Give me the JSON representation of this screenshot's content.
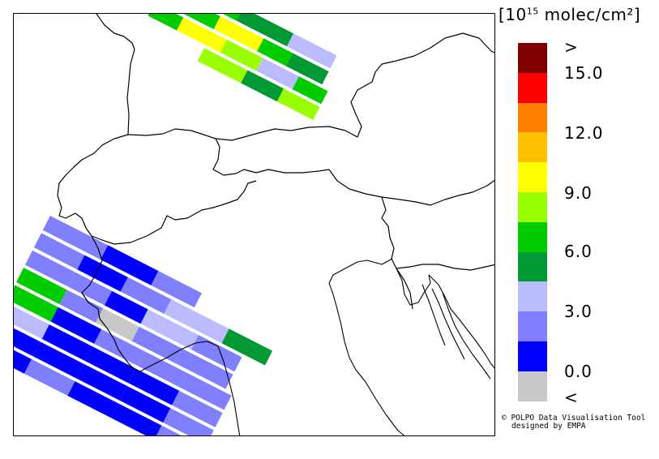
{
  "legend": {
    "unit_prefix": "[10",
    "unit_exp": "15",
    "unit_suffix": " molec/cm²]",
    "colors": [
      "#800000",
      "#ff0000",
      "#ff8000",
      "#ffc000",
      "#ffff00",
      "#99ff00",
      "#00cc00",
      "#009933",
      "#bbbbff",
      "#8080ff",
      "#0000ff",
      "#c8c8c8"
    ],
    "tick_labels": [
      ">",
      "15.0",
      "12.0",
      "9.0",
      "6.0",
      "3.0",
      "0.0",
      "<"
    ]
  },
  "credit": {
    "line1": "© POLPO Data Visualisation Tool",
    "line2": "designed by EMPA"
  }
}
